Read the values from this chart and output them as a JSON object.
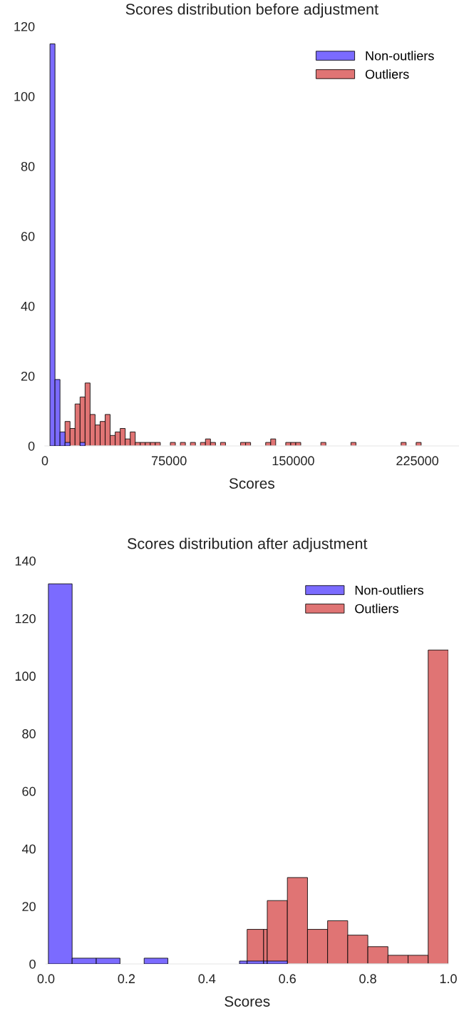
{
  "chart_data": [
    {
      "type": "histogram",
      "title": "Scores distribution before adjustment",
      "xlabel": "Scores",
      "xlim": [
        0,
        250000
      ],
      "xticks": [
        0,
        75000,
        150000,
        225000
      ],
      "ylim": [
        0,
        120
      ],
      "yticks": [
        0,
        20,
        40,
        60,
        80,
        100,
        120
      ],
      "grid": false,
      "legend": "top right",
      "bins": [
        3060,
        6090,
        9120,
        12150,
        15180,
        18210,
        21240,
        24270,
        27300,
        30330,
        33360,
        36390,
        39420,
        42450,
        45480,
        48510,
        51540,
        54570,
        57600,
        60630,
        63660,
        66690,
        69720,
        72750,
        75780,
        78810,
        81840,
        84870,
        87900,
        90930,
        93960,
        96990,
        100020,
        103050,
        106080,
        109110,
        112140,
        115170,
        118200,
        121230,
        124260,
        127290,
        130320,
        133350,
        136380,
        139410,
        142440,
        145470,
        148500,
        151530,
        154560,
        157590,
        160620,
        163650,
        166680,
        169710,
        172740,
        175770,
        178800,
        181830,
        184860,
        187890,
        190920,
        193950,
        196980,
        200010,
        203040,
        206070,
        209100,
        212130,
        215160,
        218190,
        221220,
        224250,
        227280
      ],
      "series": [
        {
          "name": "Non-outliers",
          "color": "#7b6bff",
          "values": [
            115,
            19,
            4,
            1,
            0,
            0,
            1,
            0,
            0,
            0,
            0,
            0,
            0,
            0,
            0,
            0,
            0,
            0,
            0,
            0,
            0,
            0,
            0,
            0,
            0,
            0,
            0,
            0,
            0,
            0,
            0,
            0,
            0,
            0,
            0,
            0,
            0,
            0,
            0,
            0,
            0,
            0,
            0,
            0,
            0,
            0,
            0,
            0,
            0,
            0,
            0,
            0,
            0,
            0,
            0,
            0,
            0,
            0,
            0,
            0,
            0,
            0,
            0,
            0,
            0,
            0,
            0,
            0,
            0,
            0,
            0,
            0,
            0,
            0
          ]
        },
        {
          "name": "Outliers",
          "color": "#e07474",
          "values": [
            0,
            0,
            0,
            7,
            5,
            12,
            14,
            18,
            9,
            6,
            7,
            9,
            3,
            4,
            5,
            2,
            4,
            1,
            1,
            1,
            1,
            1,
            0,
            0,
            1,
            0,
            1,
            0,
            1,
            0,
            1,
            2,
            1,
            0,
            1,
            0,
            0,
            0,
            1,
            1,
            0,
            0,
            0,
            1,
            2,
            0,
            0,
            1,
            1,
            1,
            0,
            0,
            0,
            0,
            1,
            0,
            0,
            0,
            0,
            0,
            1,
            0,
            0,
            0,
            0,
            0,
            0,
            0,
            0,
            0,
            1,
            0,
            0,
            1
          ]
        }
      ]
    },
    {
      "type": "histogram",
      "title": "Scores distribution after adjustment",
      "xlabel": "Scores",
      "xlim": [
        0,
        1.0
      ],
      "xticks": [
        {
          "value": 0,
          "label": "0.0"
        },
        0.2,
        0.4,
        0.6,
        0.8,
        {
          "value": 1.0,
          "label": "1.0"
        }
      ],
      "ylim": [
        0,
        140
      ],
      "yticks": [
        0,
        20,
        40,
        60,
        80,
        100,
        120,
        140
      ],
      "grid": false,
      "legend": "top right",
      "bins": [
        0.006,
        0.065,
        0.125,
        0.184,
        0.244,
        0.303,
        0.481,
        0.5,
        0.541,
        0.55,
        0.6,
        0.65,
        0.7,
        0.75,
        0.8,
        0.85,
        0.9,
        0.95,
        1.0
      ],
      "series": [
        {
          "name": "Non-outliers",
          "color": "#7b6bff",
          "values": [
            132,
            2,
            2,
            0,
            2,
            0,
            1,
            1,
            1,
            1,
            0,
            0,
            0,
            0,
            0,
            0,
            0,
            0
          ]
        },
        {
          "name": "Outliers",
          "color": "#e07474",
          "values": [
            0,
            0,
            0,
            0,
            0,
            0,
            0,
            12,
            12,
            22,
            30,
            12,
            15,
            10,
            6,
            3,
            3,
            109
          ]
        }
      ]
    }
  ]
}
